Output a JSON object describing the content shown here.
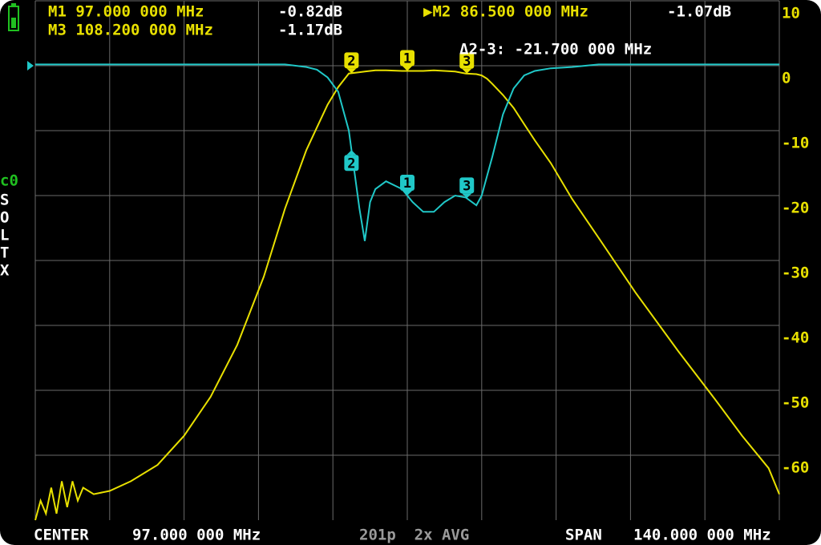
{
  "chart_data": {
    "type": "line",
    "readouts": [
      {
        "label": "M1 97.000 000 MHz",
        "value": "-0.82dB"
      },
      {
        "label": "▶M2 86.500 000 MHz",
        "value": "-1.07dB"
      },
      {
        "label": "M3 108.200 000 MHz",
        "value": "-1.17dB"
      }
    ],
    "delta": "Δ2-3: -21.700 000 MHz",
    "channel": "c0",
    "cal_flags": [
      "S",
      "O",
      "L",
      "T",
      "X"
    ],
    "footer": {
      "center_label": "CENTER",
      "center_value": "97.000 000 MHz",
      "status": "201p  2x AVG",
      "span_label": "SPAN",
      "span_value": "140.000 000 MHz"
    },
    "x": [
      27,
      28,
      29,
      30,
      31,
      32,
      33,
      34,
      35,
      36,
      38,
      41,
      45,
      50,
      55,
      60,
      65,
      70,
      74,
      78,
      80,
      82,
      84,
      86,
      88,
      89,
      90,
      91,
      93,
      96,
      98,
      100,
      102,
      104,
      106,
      108,
      110,
      111,
      112,
      113,
      115,
      117,
      119,
      121,
      124,
      128,
      133,
      140,
      148,
      155,
      160,
      165,
      167
    ],
    "series": [
      {
        "color": "#e8e000",
        "values": [
          -70,
          -67,
          -69,
          -65,
          -69,
          -64,
          -68,
          -64,
          -67,
          -65,
          -66,
          -65.5,
          -64,
          -61.5,
          -57,
          -51,
          -43,
          -32.5,
          -22,
          -13,
          -9.5,
          -6,
          -3.3,
          -1.2,
          -1,
          -0.9,
          -0.8,
          -0.7,
          -0.7,
          -0.8,
          -0.8,
          -0.8,
          -0.7,
          -0.8,
          -0.9,
          -1.2,
          -1.3,
          -1.5,
          -2,
          -2.8,
          -4.5,
          -6.5,
          -9,
          -11.5,
          -15,
          -20.5,
          -26.5,
          -35,
          -44,
          -51.5,
          -57,
          -62,
          -66
        ]
      },
      {
        "color": "#20c8c8",
        "values": [
          0.2,
          0.2,
          0.2,
          0.2,
          0.2,
          0.2,
          0.2,
          0.2,
          0.2,
          0.2,
          0.2,
          0.2,
          0.2,
          0.2,
          0.2,
          0.2,
          0.2,
          0.2,
          0.2,
          -0.2,
          -0.6,
          -1.8,
          -4,
          -10,
          -22,
          -27,
          -21,
          -19,
          -17.8,
          -19,
          -21,
          -22.5,
          -22.5,
          -21,
          -20,
          -20.3,
          -21.5,
          -20,
          -17,
          -14,
          -7.5,
          -3.5,
          -1.5,
          -0.8,
          -0.4,
          -0.2,
          0.2,
          0.2,
          0.2,
          0.2,
          0.2,
          0.2,
          0.2
        ]
      }
    ],
    "markers": [
      {
        "label": "1",
        "x": 97
      },
      {
        "label": "2",
        "x": 86.5
      },
      {
        "label": "3",
        "x": 108.2
      }
    ],
    "xlim": [
      27,
      167
    ],
    "xticks": [
      27,
      41,
      55,
      69,
      83,
      97,
      111,
      125,
      139,
      153,
      167
    ],
    "ylim": [
      -70,
      10
    ],
    "yticks": [
      10,
      0,
      -10,
      -20,
      -30,
      -40,
      -50,
      -60
    ],
    "grid": true
  }
}
